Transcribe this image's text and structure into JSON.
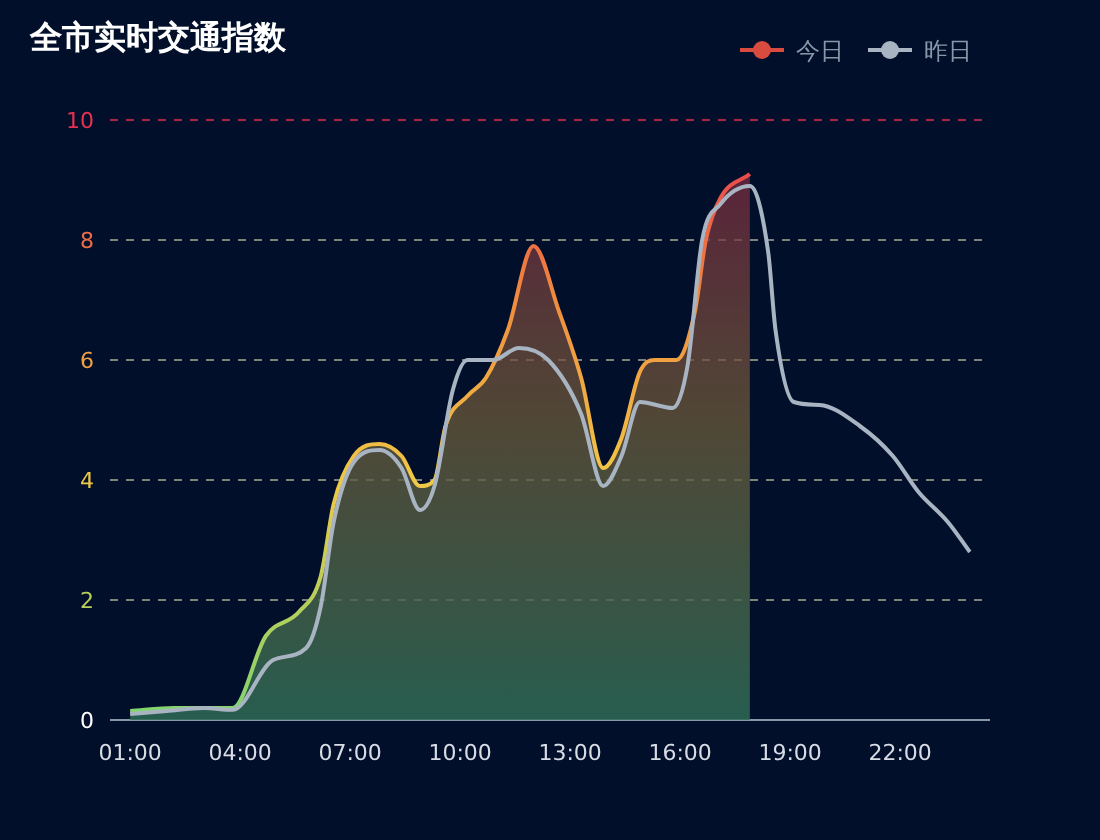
{
  "chart_data": {
    "type": "area",
    "title": "全市实时交通指数",
    "legend": "top right",
    "grid": "y",
    "xlim": [
      0.45,
      24.45
    ],
    "xticks": [
      {
        "value": 1,
        "label": "01:00"
      },
      {
        "value": 4,
        "label": "04:00"
      },
      {
        "value": 7,
        "label": "07:00"
      },
      {
        "value": 10,
        "label": "10:00"
      },
      {
        "value": 13,
        "label": "13:00"
      },
      {
        "value": 16,
        "label": "16:00"
      },
      {
        "value": 19,
        "label": "19:00"
      },
      {
        "value": 22,
        "label": "22:00"
      }
    ],
    "ylim": [
      0,
      10
    ],
    "yticks": [
      0,
      2,
      4,
      6,
      8,
      10
    ],
    "series": [
      {
        "name": "今日",
        "color": "#d94a3f",
        "x": [
          1.0,
          2.2,
          3.8,
          4.7,
          5.6,
          6.2,
          6.55,
          7.1,
          7.8,
          8.4,
          8.9,
          9.3,
          9.6,
          10.2,
          10.7,
          11.3,
          12.0,
          12.7,
          13.3,
          13.9,
          14.4,
          14.9,
          15.3,
          15.9,
          16.4,
          16.7,
          17.1,
          17.9
        ],
        "values": [
          0.15,
          0.2,
          0.2,
          1.4,
          1.8,
          2.4,
          3.6,
          4.4,
          4.6,
          4.4,
          3.9,
          4.0,
          4.9,
          5.4,
          5.7,
          6.5,
          7.9,
          6.8,
          5.7,
          4.2,
          4.7,
          5.8,
          6.0,
          6.0,
          6.8,
          8.0,
          8.7,
          9.1
        ]
      },
      {
        "name": "昨日",
        "type": "line",
        "color": "#a9b4c2",
        "x": [
          1.0,
          2.0,
          3.0,
          3.8,
          4.9,
          5.8,
          6.2,
          6.55,
          7.1,
          7.8,
          8.4,
          8.9,
          9.3,
          9.8,
          10.2,
          10.9,
          11.6,
          12.4,
          13.3,
          13.9,
          14.4,
          14.9,
          15.8,
          16.2,
          16.6,
          17.1,
          17.9,
          18.4,
          18.6,
          19.1,
          19.8,
          20.9,
          21.8,
          22.5,
          23.3,
          23.9
        ],
        "values": [
          0.1,
          0.15,
          0.2,
          0.17,
          1.0,
          1.2,
          1.9,
          3.3,
          4.3,
          4.5,
          4.2,
          3.5,
          3.9,
          5.5,
          6.0,
          6.0,
          6.2,
          6.0,
          5.1,
          3.9,
          4.4,
          5.3,
          5.2,
          5.9,
          8.0,
          8.6,
          8.9,
          7.8,
          6.5,
          5.3,
          5.25,
          4.9,
          4.4,
          3.8,
          3.3,
          2.8
        ]
      }
    ]
  }
}
